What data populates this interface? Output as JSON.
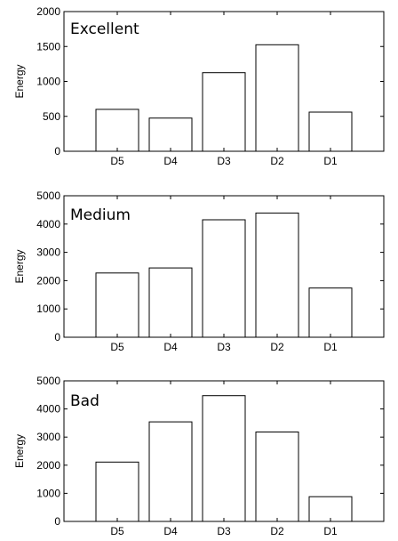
{
  "chart_data": [
    {
      "type": "bar",
      "title": "",
      "annotation": "Excellent",
      "xlabel": "",
      "ylabel": "Energy",
      "categories": [
        "D5",
        "D4",
        "D3",
        "D2",
        "D1"
      ],
      "values": [
        600,
        475,
        1125,
        1525,
        560
      ],
      "ylim": [
        0,
        2000
      ],
      "yticks": [
        0,
        500,
        1000,
        1500,
        2000
      ],
      "grid": false,
      "bar_fill": "#ffffff",
      "bar_stroke": "#000000"
    },
    {
      "type": "bar",
      "title": "",
      "annotation": "Medium",
      "xlabel": "",
      "ylabel": "Energy",
      "categories": [
        "D5",
        "D4",
        "D3",
        "D2",
        "D1"
      ],
      "values": [
        2270,
        2450,
        4150,
        4390,
        1740
      ],
      "ylim": [
        0,
        5000
      ],
      "yticks": [
        0,
        1000,
        2000,
        3000,
        4000,
        5000
      ],
      "grid": false,
      "bar_fill": "#ffffff",
      "bar_stroke": "#000000"
    },
    {
      "type": "bar",
      "title": "",
      "annotation": "Bad",
      "xlabel": "",
      "ylabel": "Energy",
      "categories": [
        "D5",
        "D4",
        "D3",
        "D2",
        "D1"
      ],
      "values": [
        2110,
        3540,
        4470,
        3180,
        880
      ],
      "ylim": [
        0,
        5000
      ],
      "yticks": [
        0,
        1000,
        2000,
        3000,
        4000,
        5000
      ],
      "grid": false,
      "bar_fill": "#ffffff",
      "bar_stroke": "#000000"
    }
  ]
}
